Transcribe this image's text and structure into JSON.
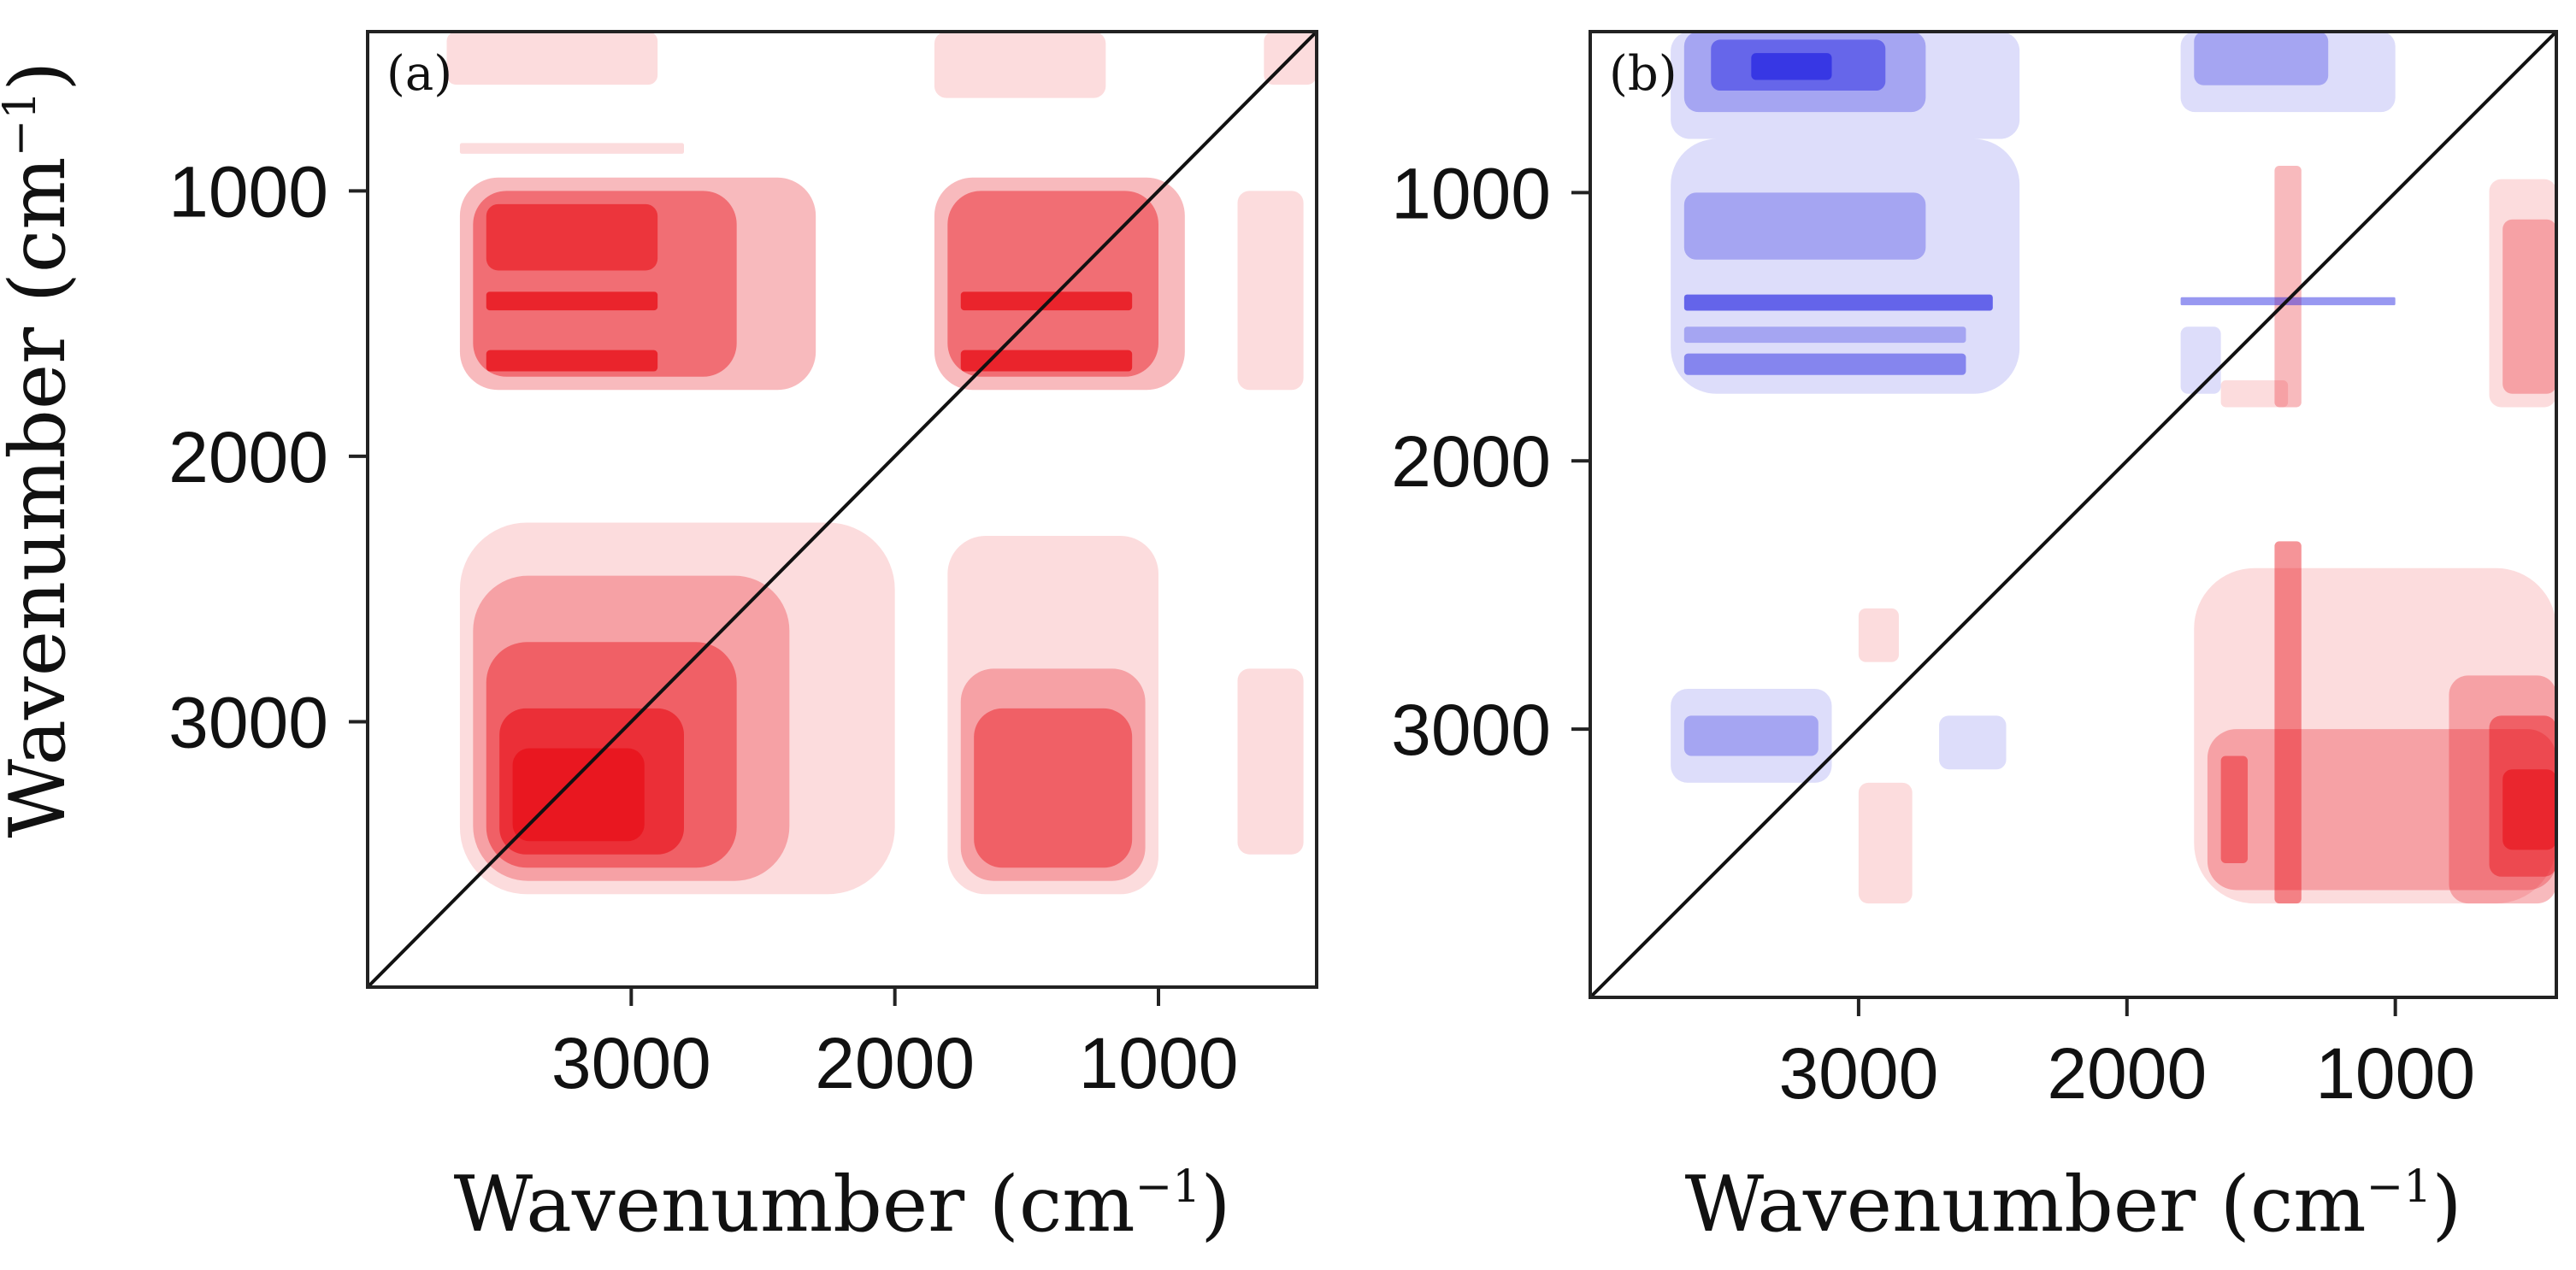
{
  "chart_data": [
    {
      "type": "heatmap",
      "subtype": "2D correlation contour map (synchronous)",
      "panel_label": "(a)",
      "xlabel": "Wavenumber (cm⁻¹)",
      "ylabel": "Wavenumber (cm⁻¹)",
      "xlim": [
        4000,
        400
      ],
      "ylim": [
        400,
        4000
      ],
      "x_ticks": [
        "3000",
        "2000",
        "1000"
      ],
      "y_ticks": [
        "1000",
        "2000",
        "3000"
      ],
      "x_tick_values": [
        3000,
        2000,
        1000
      ],
      "y_tick_values": [
        1000,
        2000,
        3000
      ],
      "diagonal": true,
      "colors": {
        "positive": "#e8111a",
        "negative": "#1a1ae0"
      },
      "regions": [
        {
          "x": [
            3700,
            2900
          ],
          "y": [
            400,
            600
          ],
          "sign": 1,
          "level": 1
        },
        {
          "x": [
            1850,
            1200
          ],
          "y": [
            400,
            650
          ],
          "sign": 1,
          "level": 1
        },
        {
          "x": [
            600,
            400
          ],
          "y": [
            400,
            600
          ],
          "sign": 1,
          "level": 1
        },
        {
          "x": [
            3650,
            2800
          ],
          "y": [
            820,
            860
          ],
          "sign": 1,
          "level": 1
        },
        {
          "x": [
            3650,
            2300
          ],
          "y": [
            950,
            1750
          ],
          "sign": 1,
          "level": 2
        },
        {
          "x": [
            3600,
            2600
          ],
          "y": [
            1000,
            1700
          ],
          "sign": 1,
          "level": 3
        },
        {
          "x": [
            3550,
            2900
          ],
          "y": [
            1380,
            1450
          ],
          "sign": 1,
          "level": 5
        },
        {
          "x": [
            3550,
            2900
          ],
          "y": [
            1600,
            1680
          ],
          "sign": 1,
          "level": 5
        },
        {
          "x": [
            3550,
            2900
          ],
          "y": [
            1050,
            1300
          ],
          "sign": 1,
          "level": 4
        },
        {
          "x": [
            1850,
            900
          ],
          "y": [
            950,
            1750
          ],
          "sign": 1,
          "level": 2
        },
        {
          "x": [
            1800,
            1000
          ],
          "y": [
            1000,
            1700
          ],
          "sign": 1,
          "level": 3
        },
        {
          "x": [
            1750,
            1100
          ],
          "y": [
            1380,
            1450
          ],
          "sign": 1,
          "level": 5
        },
        {
          "x": [
            1750,
            1100
          ],
          "y": [
            1600,
            1680
          ],
          "sign": 1,
          "level": 5
        },
        {
          "x": [
            700,
            450
          ],
          "y": [
            1000,
            1750
          ],
          "sign": 1,
          "level": 1
        },
        {
          "x": [
            3650,
            2000
          ],
          "y": [
            2250,
            3650
          ],
          "sign": 1,
          "level": 1
        },
        {
          "x": [
            3600,
            2400
          ],
          "y": [
            2450,
            3600
          ],
          "sign": 1,
          "level": 2
        },
        {
          "x": [
            3550,
            2600
          ],
          "y": [
            2700,
            3550
          ],
          "sign": 1,
          "level": 3
        },
        {
          "x": [
            3500,
            2800
          ],
          "y": [
            2950,
            3500
          ],
          "sign": 1,
          "level": 4
        },
        {
          "x": [
            3450,
            2950
          ],
          "y": [
            3100,
            3450
          ],
          "sign": 1,
          "level": 5
        },
        {
          "x": [
            1800,
            1000
          ],
          "y": [
            2300,
            3650
          ],
          "sign": 1,
          "level": 1
        },
        {
          "x": [
            1750,
            1050
          ],
          "y": [
            2800,
            3600
          ],
          "sign": 1,
          "level": 2
        },
        {
          "x": [
            1700,
            1100
          ],
          "y": [
            2950,
            3550
          ],
          "sign": 1,
          "level": 3
        },
        {
          "x": [
            700,
            450
          ],
          "y": [
            2800,
            3500
          ],
          "sign": 1,
          "level": 1
        }
      ]
    },
    {
      "type": "heatmap",
      "subtype": "2D correlation contour map (asynchronous)",
      "panel_label": "(b)",
      "xlabel": "Wavenumber (cm⁻¹)",
      "ylabel": "",
      "xlim": [
        4000,
        400
      ],
      "ylim": [
        400,
        4000
      ],
      "x_ticks": [
        "3000",
        "2000",
        "1000"
      ],
      "y_ticks": [
        "1000",
        "2000",
        "3000"
      ],
      "x_tick_values": [
        3000,
        2000,
        1000
      ],
      "y_tick_values": [
        1000,
        2000,
        3000
      ],
      "diagonal": true,
      "colors": {
        "positive": "#e8111a",
        "negative": "#1a1ae0"
      },
      "regions": [
        {
          "x": [
            3700,
            2400
          ],
          "y": [
            400,
            800
          ],
          "sign": -1,
          "level": 1
        },
        {
          "x": [
            3650,
            2750
          ],
          "y": [
            400,
            700
          ],
          "sign": -1,
          "level": 2
        },
        {
          "x": [
            3550,
            2900
          ],
          "y": [
            430,
            620
          ],
          "sign": -1,
          "level": 3
        },
        {
          "x": [
            3400,
            3100
          ],
          "y": [
            480,
            580
          ],
          "sign": -1,
          "level": 4
        },
        {
          "x": [
            3700,
            2400
          ],
          "y": [
            800,
            1750
          ],
          "sign": -1,
          "level": 1
        },
        {
          "x": [
            3650,
            2750
          ],
          "y": [
            1000,
            1250
          ],
          "sign": -1,
          "level": 2
        },
        {
          "x": [
            3650,
            2500
          ],
          "y": [
            1380,
            1440
          ],
          "sign": -1,
          "level": 4
        },
        {
          "x": [
            3650,
            2600
          ],
          "y": [
            1500,
            1560
          ],
          "sign": -1,
          "level": 2
        },
        {
          "x": [
            3650,
            2600
          ],
          "y": [
            1600,
            1680
          ],
          "sign": -1,
          "level": 3
        },
        {
          "x": [
            1800,
            1000
          ],
          "y": [
            400,
            700
          ],
          "sign": -1,
          "level": 1
        },
        {
          "x": [
            1750,
            1250
          ],
          "y": [
            400,
            600
          ],
          "sign": -1,
          "level": 2
        },
        {
          "x": [
            1800,
            1000
          ],
          "y": [
            1390,
            1420
          ],
          "sign": -1,
          "level": 3
        },
        {
          "x": [
            1800,
            1650
          ],
          "y": [
            1500,
            1750
          ],
          "sign": -1,
          "level": 1
        },
        {
          "x": [
            1450,
            1350
          ],
          "y": [
            900,
            1800
          ],
          "sign": 1,
          "level": 2
        },
        {
          "x": [
            1650,
            1400
          ],
          "y": [
            1700,
            1800
          ],
          "sign": 1,
          "level": 1
        },
        {
          "x": [
            650,
            400
          ],
          "y": [
            950,
            1800
          ],
          "sign": 1,
          "level": 1
        },
        {
          "x": [
            600,
            400
          ],
          "y": [
            1100,
            1750
          ],
          "sign": 1,
          "level": 2
        },
        {
          "x": [
            3700,
            3100
          ],
          "y": [
            2850,
            3200
          ],
          "sign": -1,
          "level": 1
        },
        {
          "x": [
            3650,
            3150
          ],
          "y": [
            2950,
            3100
          ],
          "sign": -1,
          "level": 2
        },
        {
          "x": [
            2700,
            2450
          ],
          "y": [
            2950,
            3150
          ],
          "sign": -1,
          "level": 1
        },
        {
          "x": [
            3000,
            2850
          ],
          "y": [
            2550,
            2750
          ],
          "sign": 1,
          "level": 1
        },
        {
          "x": [
            3000,
            2800
          ],
          "y": [
            3200,
            3650
          ],
          "sign": 1,
          "level": 1
        },
        {
          "x": [
            1750,
            400
          ],
          "y": [
            2400,
            3650
          ],
          "sign": 1,
          "level": 1
        },
        {
          "x": [
            1700,
            400
          ],
          "y": [
            3000,
            3600
          ],
          "sign": 1,
          "level": 2
        },
        {
          "x": [
            800,
            400
          ],
          "y": [
            2800,
            3650
          ],
          "sign": 1,
          "level": 2
        },
        {
          "x": [
            650,
            400
          ],
          "y": [
            2950,
            3550
          ],
          "sign": 1,
          "level": 3
        },
        {
          "x": [
            600,
            400
          ],
          "y": [
            3150,
            3450
          ],
          "sign": 1,
          "level": 4
        },
        {
          "x": [
            1450,
            1350
          ],
          "y": [
            2300,
            3650
          ],
          "sign": 1,
          "level": 3
        },
        {
          "x": [
            1650,
            1550
          ],
          "y": [
            3100,
            3500
          ],
          "sign": 1,
          "level": 3
        }
      ]
    }
  ]
}
